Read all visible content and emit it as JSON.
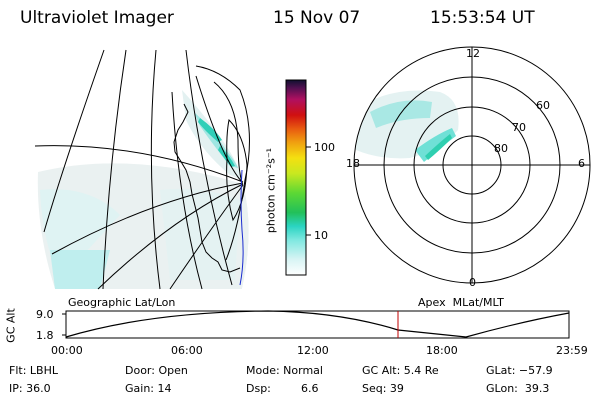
{
  "header": {
    "instrument": "Ultraviolet Imager",
    "date": "15 Nov 07",
    "time": "15:53:54 UT"
  },
  "colorbar": {
    "unit_label": "photon cm⁻²s⁻¹",
    "ticks": [
      "100",
      "10"
    ]
  },
  "polar_plot": {
    "mlt_labels": {
      "top": "12",
      "right": "6",
      "bottom": "0",
      "left": "18"
    },
    "lat_labels": [
      "60",
      "70",
      "80"
    ]
  },
  "map_labels": {
    "left": "Geographic Lat/Lon",
    "right": "Apex  MLat/MLT"
  },
  "orbit_plot": {
    "ylabel": "GC Alt",
    "yticks": [
      "9.0",
      "1.8"
    ],
    "xticks": [
      "00:00",
      "06:00",
      "12:00",
      "18:00",
      "23:59"
    ],
    "current_time_marker": "15:53:54",
    "colors": {
      "curve": "#000000",
      "marker": "#c00000"
    }
  },
  "status": {
    "flt": "Flt: LBHL",
    "door": "Door: Open",
    "mode": "Mode: Normal",
    "gc_alt": "GC Alt: 5.4 Re",
    "glat": "GLat: −57.9",
    "ip": "IP: 36.0",
    "gain": "Gain: 14",
    "dsp_label": "Dsp:",
    "dsp_value": "6.6",
    "seq": "Seq: 39",
    "glon": "GLon:  39.3"
  }
}
